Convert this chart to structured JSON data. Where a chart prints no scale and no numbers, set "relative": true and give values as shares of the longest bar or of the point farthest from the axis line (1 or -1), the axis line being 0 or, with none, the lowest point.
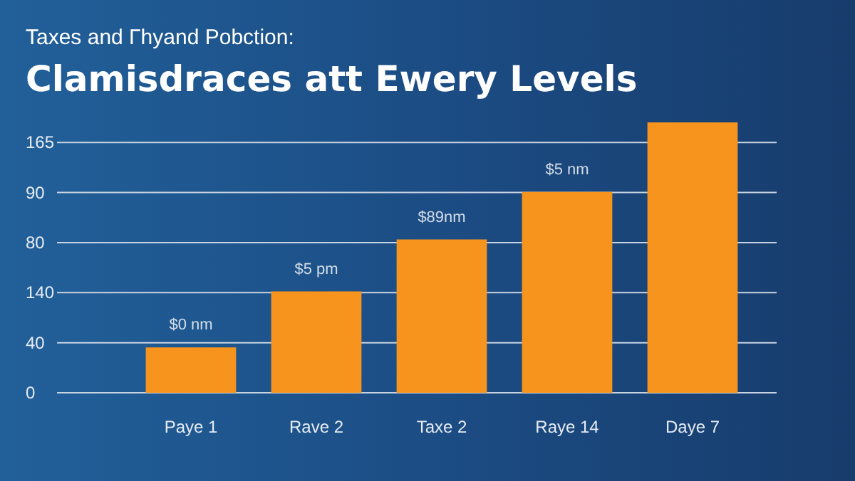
{
  "chart_data": {
    "type": "bar",
    "title": "Taxes and Γhyand Pobction:",
    "subtitle": "Clamisdraces att Ewery Levels",
    "categories": [
      "Paye 1",
      "Rave 2",
      "Taxe 2",
      "Raye 14",
      "Daye 7"
    ],
    "values": [
      0.168,
      0.375,
      0.567,
      0.743,
      1
    ],
    "relative": true,
    "color": "#f7941d",
    "annotations": [
      "165",
      "90",
      "80",
      "140",
      "40",
      "0",
      {
        "text": "$0 nm",
        "x": "Paye 1",
        "y": 0.168
      },
      {
        "text": "$5 pm",
        "x": "Rave 2",
        "y": 0.375
      },
      {
        "text": "$89nm",
        "x": "Taxe 2",
        "y": 0.567
      },
      {
        "text": "$5 nm",
        "x": "Raye 14",
        "y": 0.743
      }
    ],
    "grid": "y"
  }
}
